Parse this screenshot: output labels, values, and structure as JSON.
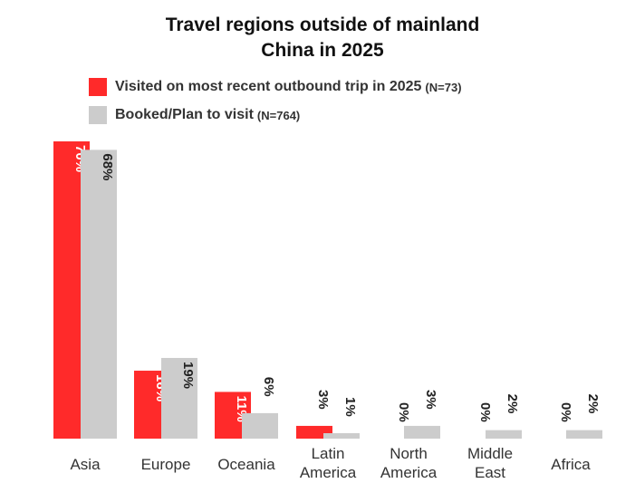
{
  "title_line1": "Travel regions outside of mainland",
  "title_line2": "China in 2025",
  "legend": [
    {
      "label": "Visited on most recent outbound trip in 2025",
      "n": "(N=73)",
      "color": "#ff2a2a"
    },
    {
      "label": "Booked/Plan to visit",
      "n": "(N=764)",
      "color": "#cccccc"
    }
  ],
  "chart_data": {
    "type": "bar",
    "categories": [
      "Asia",
      "Europe",
      "Oceania",
      "Latin America",
      "North America",
      "Middle East",
      "Africa"
    ],
    "series": [
      {
        "name": "Visited on most recent outbound trip in 2025 (N=73)",
        "color": "#ff2a2a",
        "values": [
          70,
          16,
          11,
          3,
          0,
          0,
          0
        ],
        "labels": [
          "70%",
          "16%",
          "11%",
          "3%",
          "0%",
          "0%",
          "0%"
        ]
      },
      {
        "name": "Booked/Plan to visit (N=764)",
        "color": "#cccccc",
        "values": [
          68,
          19,
          6,
          1,
          3,
          2,
          2
        ],
        "labels": [
          "68%",
          "19%",
          "6%",
          "1%",
          "3%",
          "2%",
          "2%"
        ]
      }
    ],
    "ylim": [
      0,
      70
    ],
    "grid": false,
    "legend_position": "top"
  }
}
